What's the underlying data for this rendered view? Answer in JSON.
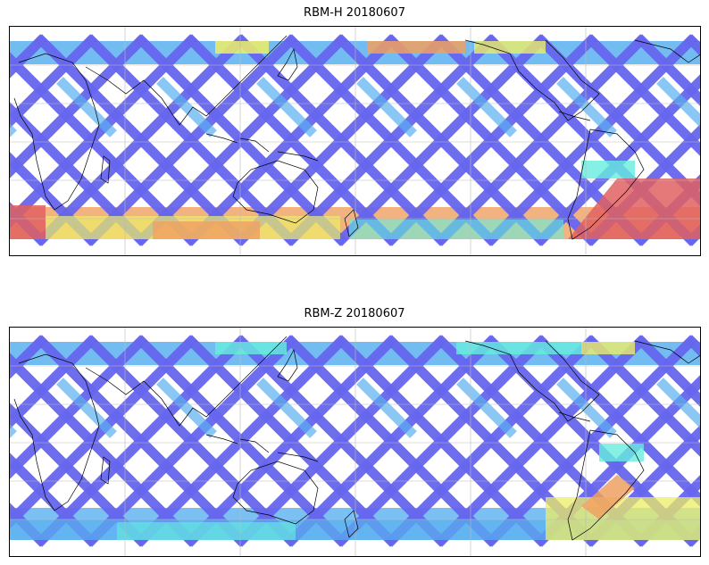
{
  "panels": [
    {
      "title": "RBM-H 20180607"
    },
    {
      "title": "RBM-Z 20180607"
    }
  ],
  "colors": {
    "low": "#6666ee",
    "low_mid": "#5ab0f0",
    "mid": "#66eedd",
    "mid_high": "#eeee66",
    "high": "#f0a060",
    "very_high": "#e06060",
    "coast": "#000000",
    "grid": "#bbbbbb"
  }
}
